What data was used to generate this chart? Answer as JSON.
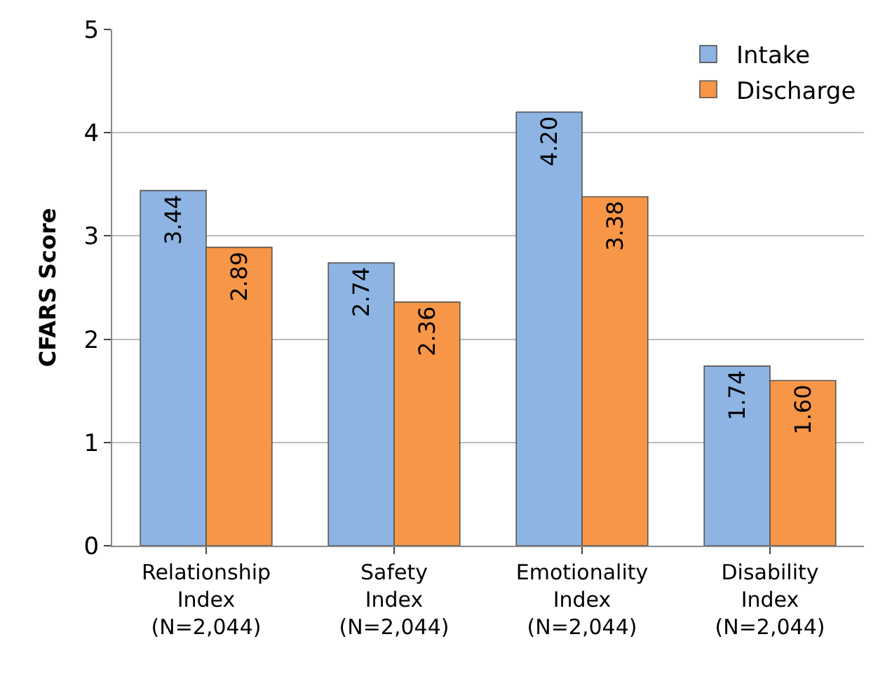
{
  "chart_data": {
    "type": "bar",
    "ylabel": "CFARS Score",
    "categories": [
      "Relationship\nIndex\n(N=2,044)",
      "Safety\nIndex\n(N=2,044)",
      "Emotionality\nIndex\n(N=2,044)",
      "Disability\nIndex\n(N=2,044)"
    ],
    "series": [
      {
        "name": "Intake",
        "color": "#8db4e2",
        "values": [
          3.44,
          2.74,
          4.2,
          1.74
        ],
        "value_labels": [
          "3.44",
          "2.74",
          "4.20",
          "1.74"
        ]
      },
      {
        "name": "Discharge",
        "color": "#f79646",
        "values": [
          2.89,
          2.36,
          3.38,
          1.6
        ],
        "value_labels": [
          "2.89",
          "2.36",
          "3.38",
          "1.60"
        ]
      }
    ],
    "ylim": [
      0,
      5
    ],
    "yticks": [
      0,
      1,
      2,
      3,
      4,
      5
    ],
    "grid": "y",
    "legend": "top right"
  }
}
